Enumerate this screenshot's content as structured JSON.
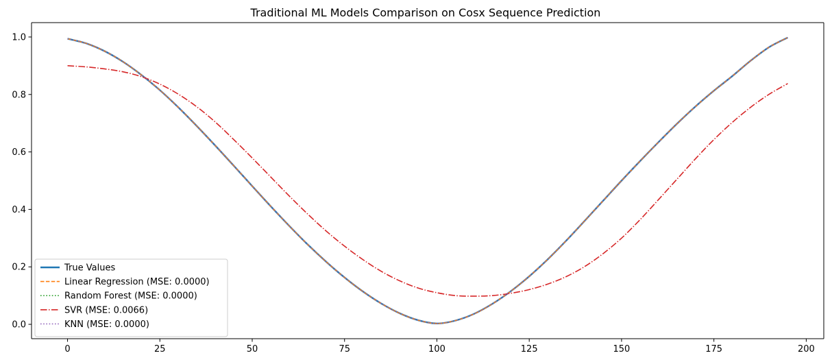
{
  "chart_data": {
    "type": "line",
    "title": "Traditional ML Models Comparison on Cosx Sequence Prediction",
    "xlabel": "",
    "ylabel": "",
    "xlim": [
      -9.75,
      204.75
    ],
    "ylim": [
      -0.05,
      1.05
    ],
    "xticks": [
      0,
      25,
      50,
      75,
      100,
      125,
      150,
      175,
      200
    ],
    "yticks": [
      0.0,
      0.2,
      0.4,
      0.6,
      0.8,
      1.0
    ],
    "xtick_labels": [
      "0",
      "25",
      "50",
      "75",
      "100",
      "125",
      "150",
      "175",
      "200"
    ],
    "ytick_labels": [
      "0.0",
      "0.2",
      "0.4",
      "0.6",
      "0.8",
      "1.0"
    ],
    "grid": false,
    "legend_position": "lower-left",
    "x": [
      0,
      5,
      10,
      15,
      20,
      25,
      30,
      35,
      40,
      45,
      50,
      55,
      60,
      65,
      70,
      75,
      80,
      85,
      90,
      95,
      100,
      105,
      110,
      115,
      120,
      125,
      130,
      135,
      140,
      145,
      150,
      155,
      160,
      165,
      170,
      175,
      180,
      185,
      190,
      195
    ],
    "series": [
      {
        "name": "True Values",
        "color": "#1f77b4",
        "style": "solid",
        "values": [
          0.994,
          0.978,
          0.951,
          0.914,
          0.868,
          0.815,
          0.755,
          0.69,
          0.622,
          0.552,
          0.481,
          0.411,
          0.343,
          0.278,
          0.218,
          0.163,
          0.114,
          0.072,
          0.038,
          0.014,
          0.003,
          0.013,
          0.036,
          0.071,
          0.115,
          0.167,
          0.226,
          0.291,
          0.36,
          0.43,
          0.5,
          0.568,
          0.634,
          0.698,
          0.758,
          0.813,
          0.864,
          0.918,
          0.965,
          0.998
        ]
      },
      {
        "name": "Linear Regression (MSE: 0.0000)",
        "color": "#ff7f0e",
        "style": "dashed",
        "values": [
          0.994,
          0.978,
          0.951,
          0.914,
          0.868,
          0.815,
          0.755,
          0.69,
          0.622,
          0.552,
          0.481,
          0.411,
          0.343,
          0.278,
          0.218,
          0.163,
          0.114,
          0.072,
          0.038,
          0.014,
          0.003,
          0.013,
          0.036,
          0.071,
          0.115,
          0.167,
          0.226,
          0.291,
          0.36,
          0.43,
          0.5,
          0.568,
          0.634,
          0.698,
          0.758,
          0.813,
          0.864,
          0.918,
          0.965,
          0.998
        ]
      },
      {
        "name": "Random Forest (MSE: 0.0000)",
        "color": "#2ca02c",
        "style": "dotted",
        "values": [
          0.994,
          0.978,
          0.951,
          0.914,
          0.868,
          0.815,
          0.755,
          0.69,
          0.622,
          0.552,
          0.481,
          0.411,
          0.343,
          0.278,
          0.218,
          0.163,
          0.114,
          0.072,
          0.038,
          0.014,
          0.003,
          0.013,
          0.036,
          0.071,
          0.115,
          0.167,
          0.226,
          0.291,
          0.36,
          0.43,
          0.5,
          0.568,
          0.634,
          0.698,
          0.758,
          0.813,
          0.864,
          0.918,
          0.965,
          0.998
        ]
      },
      {
        "name": "SVR (MSE: 0.0066)",
        "color": "#d62728",
        "style": "dashdot",
        "values": [
          0.9,
          0.896,
          0.889,
          0.879,
          0.862,
          0.836,
          0.801,
          0.757,
          0.704,
          0.643,
          0.579,
          0.513,
          0.447,
          0.384,
          0.325,
          0.272,
          0.225,
          0.184,
          0.151,
          0.126,
          0.11,
          0.1,
          0.098,
          0.1,
          0.108,
          0.121,
          0.14,
          0.166,
          0.201,
          0.246,
          0.3,
          0.364,
          0.434,
          0.505,
          0.576,
          0.643,
          0.703,
          0.756,
          0.801,
          0.838
        ]
      },
      {
        "name": "KNN (MSE: 0.0000)",
        "color": "#9467bd",
        "style": "dotted",
        "values": [
          0.994,
          0.978,
          0.951,
          0.914,
          0.868,
          0.815,
          0.755,
          0.69,
          0.622,
          0.552,
          0.481,
          0.411,
          0.343,
          0.278,
          0.218,
          0.163,
          0.114,
          0.072,
          0.038,
          0.014,
          0.003,
          0.013,
          0.036,
          0.071,
          0.115,
          0.167,
          0.226,
          0.291,
          0.36,
          0.43,
          0.5,
          0.568,
          0.634,
          0.698,
          0.758,
          0.813,
          0.864,
          0.918,
          0.965,
          0.998
        ]
      }
    ]
  }
}
